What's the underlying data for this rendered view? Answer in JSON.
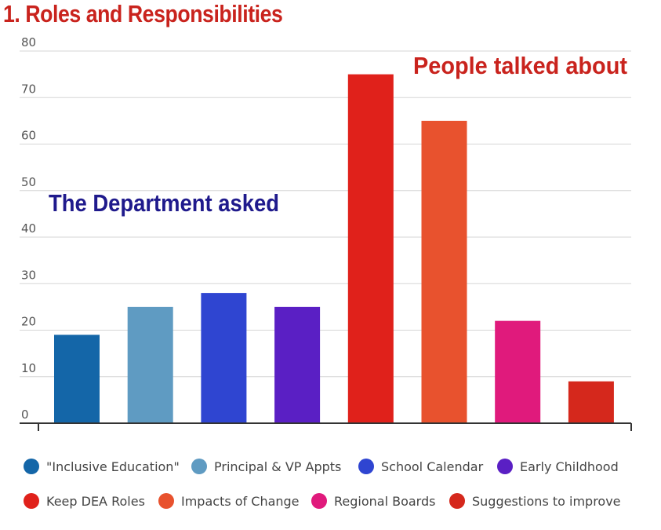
{
  "chart_data": {
    "type": "bar",
    "title": "1. Roles and Responsibilities",
    "categories": [
      "\"Inclusive Education\"",
      "Principal & VP Appts",
      "School Calendar",
      "Early Childhood",
      "Keep DEA Roles",
      "Impacts of Change",
      "Regional Boards",
      "Suggestions to improve"
    ],
    "values": [
      19,
      25,
      28,
      25,
      75,
      65,
      22,
      9
    ],
    "colors": [
      "#1466a8",
      "#5f9bc2",
      "#2f45d1",
      "#5a1fc4",
      "#e0211b",
      "#e8522e",
      "#e01a7c",
      "#d5281c"
    ],
    "ylim": [
      0,
      80
    ],
    "yticks": [
      0,
      10,
      20,
      30,
      40,
      50,
      60,
      70,
      80
    ],
    "xlabel": "",
    "ylabel": "",
    "grid": true,
    "legend_position": "bottom",
    "annotations": [
      "The Department asked",
      "People talked about"
    ]
  },
  "legend": {
    "row1": [
      {
        "label": "\"Inclusive Education\"",
        "color": "#1466a8"
      },
      {
        "label": "Principal & VP Appts",
        "color": "#5f9bc2"
      },
      {
        "label": "School Calendar",
        "color": "#2f45d1"
      },
      {
        "label": "Early Childhood",
        "color": "#5a1fc4"
      }
    ],
    "row2": [
      {
        "label": "Keep DEA Roles",
        "color": "#e0211b"
      },
      {
        "label": "Impacts of Change",
        "color": "#e8522e"
      },
      {
        "label": "Regional Boards",
        "color": "#e01a7c"
      },
      {
        "label": "Suggestions to improve",
        "color": "#d5281c"
      }
    ]
  }
}
